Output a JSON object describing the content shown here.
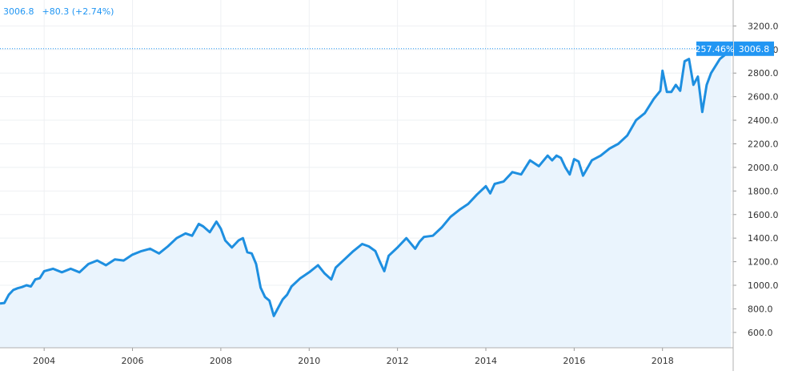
{
  "header": {
    "last_value": "3006.8",
    "change": "+80.3 (+2.74%)"
  },
  "price_label": {
    "percent": "257.46%",
    "value": "3006.8"
  },
  "colors": {
    "line": "#1e8fe0",
    "fill": "#eaf4fd",
    "grid": "#eef0f3",
    "axis_text": "#333333",
    "label_bg": "#2196f3"
  },
  "chart_data": {
    "type": "area",
    "title": "",
    "xlabel": "",
    "ylabel": "",
    "xlim": [
      2003.0,
      2019.6
    ],
    "ylim": [
      470,
      3420
    ],
    "x_ticks": [
      2004,
      2006,
      2008,
      2010,
      2012,
      2014,
      2016,
      2018
    ],
    "x_tick_labels": [
      "2004",
      "2006",
      "2008",
      "2010",
      "2012",
      "2014",
      "2016",
      "2018"
    ],
    "y_ticks": [
      600,
      800,
      1000,
      1200,
      1400,
      1600,
      1800,
      2000,
      2200,
      2400,
      2600,
      2800,
      3000,
      3200
    ],
    "y_tick_labels": [
      "600.0",
      "800.0",
      "1000.0",
      "1200.0",
      "1400.0",
      "1600.0",
      "1800.0",
      "2000.0",
      "2200.0",
      "2400.0",
      "2600.0",
      "2800.0",
      "3000.0",
      "3200.0"
    ],
    "grid": true,
    "reference_line": 3006.8,
    "series": [
      {
        "x": [
          2003.0,
          2003.1,
          2003.2,
          2003.3,
          2003.4,
          2003.5,
          2003.6,
          2003.7,
          2003.8,
          2003.9,
          2004.0,
          2004.2,
          2004.4,
          2004.6,
          2004.8,
          2005.0,
          2005.2,
          2005.4,
          2005.6,
          2005.8,
          2006.0,
          2006.2,
          2006.4,
          2006.6,
          2006.8,
          2007.0,
          2007.2,
          2007.35,
          2007.5,
          2007.6,
          2007.75,
          2007.9,
          2008.0,
          2008.1,
          2008.25,
          2008.4,
          2008.5,
          2008.6,
          2008.7,
          2008.8,
          2008.9,
          2009.0,
          2009.1,
          2009.2,
          2009.3,
          2009.4,
          2009.5,
          2009.6,
          2009.8,
          2010.0,
          2010.2,
          2010.35,
          2010.5,
          2010.6,
          2010.8,
          2011.0,
          2011.2,
          2011.35,
          2011.5,
          2011.6,
          2011.7,
          2011.8,
          2012.0,
          2012.2,
          2012.4,
          2012.5,
          2012.6,
          2012.8,
          2013.0,
          2013.2,
          2013.4,
          2013.6,
          2013.8,
          2014.0,
          2014.1,
          2014.2,
          2014.4,
          2014.6,
          2014.8,
          2015.0,
          2015.2,
          2015.4,
          2015.5,
          2015.6,
          2015.7,
          2015.8,
          2015.9,
          2016.0,
          2016.1,
          2016.2,
          2016.4,
          2016.6,
          2016.8,
          2017.0,
          2017.2,
          2017.4,
          2017.6,
          2017.8,
          2017.95,
          2018.0,
          2018.1,
          2018.2,
          2018.3,
          2018.4,
          2018.5,
          2018.6,
          2018.7,
          2018.8,
          2018.9,
          2019.0,
          2019.1,
          2019.3,
          2019.4,
          2019.5,
          2019.55
        ],
        "values": [
          845,
          850,
          920,
          960,
          975,
          985,
          1000,
          990,
          1050,
          1060,
          1120,
          1140,
          1110,
          1140,
          1110,
          1180,
          1210,
          1170,
          1220,
          1210,
          1260,
          1290,
          1310,
          1270,
          1330,
          1400,
          1440,
          1420,
          1520,
          1500,
          1450,
          1540,
          1480,
          1380,
          1320,
          1380,
          1400,
          1280,
          1270,
          1180,
          980,
          900,
          870,
          740,
          810,
          880,
          920,
          990,
          1060,
          1110,
          1170,
          1100,
          1050,
          1150,
          1220,
          1290,
          1350,
          1330,
          1290,
          1200,
          1120,
          1250,
          1320,
          1400,
          1310,
          1370,
          1410,
          1420,
          1490,
          1580,
          1640,
          1690,
          1770,
          1840,
          1780,
          1860,
          1880,
          1960,
          1940,
          2060,
          2010,
          2100,
          2060,
          2100,
          2080,
          2000,
          1940,
          2070,
          2050,
          1930,
          2060,
          2100,
          2160,
          2200,
          2270,
          2400,
          2460,
          2580,
          2650,
          2820,
          2640,
          2640,
          2700,
          2650,
          2900,
          2920,
          2700,
          2770,
          2470,
          2700,
          2800,
          2920,
          2950,
          3000,
          2980
        ]
      }
    ]
  }
}
